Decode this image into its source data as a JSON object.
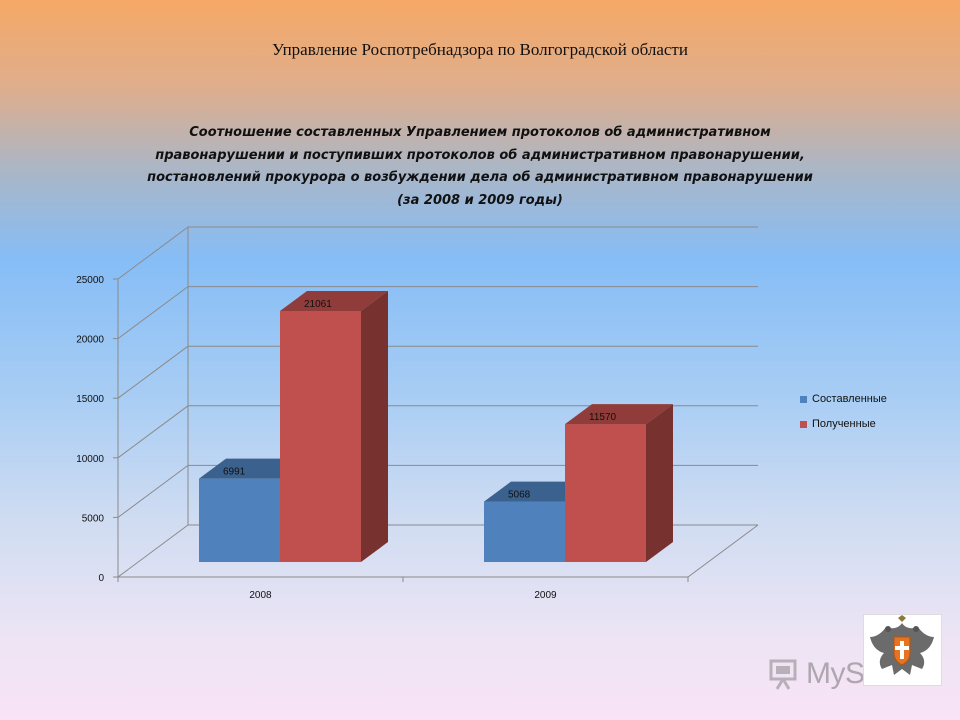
{
  "header": {
    "title": "Управление Роспотребнадзора по Волгоградской области"
  },
  "chart_data": {
    "type": "bar",
    "title_lines": [
      "Соотношение составленных Управлением протоколов об административном",
      "правонарушении и поступивших протоколов об административном правонарушении,",
      "постановлений прокурора о возбуждении дела об административном правонарушении",
      "(за 2008 и 2009 годы)"
    ],
    "categories": [
      "2008",
      "2009"
    ],
    "series": [
      {
        "name": "Составленные",
        "values": [
          6991,
          5068
        ],
        "color": "#4f81bd"
      },
      {
        "name": "Полученные",
        "values": [
          21061,
          11570
        ],
        "color": "#c0504d"
      }
    ],
    "ylim": [
      0,
      25000
    ],
    "yticks": [
      0,
      5000,
      10000,
      15000,
      20000,
      25000
    ],
    "ytick_labels": [
      "0",
      "5000",
      "10000",
      "15000",
      "20000",
      "25000"
    ],
    "grid": true,
    "legend_position": "right",
    "style": "3d-clustered"
  },
  "watermark": {
    "text_main": "MyShar",
    "text_accent": "ed",
    "icon": "presentation-board-icon"
  },
  "emblem": {
    "icon": "double-headed-eagle-emblem-icon",
    "colors": {
      "eagle": "#6a6a6a",
      "shield": "#e8731f"
    }
  }
}
